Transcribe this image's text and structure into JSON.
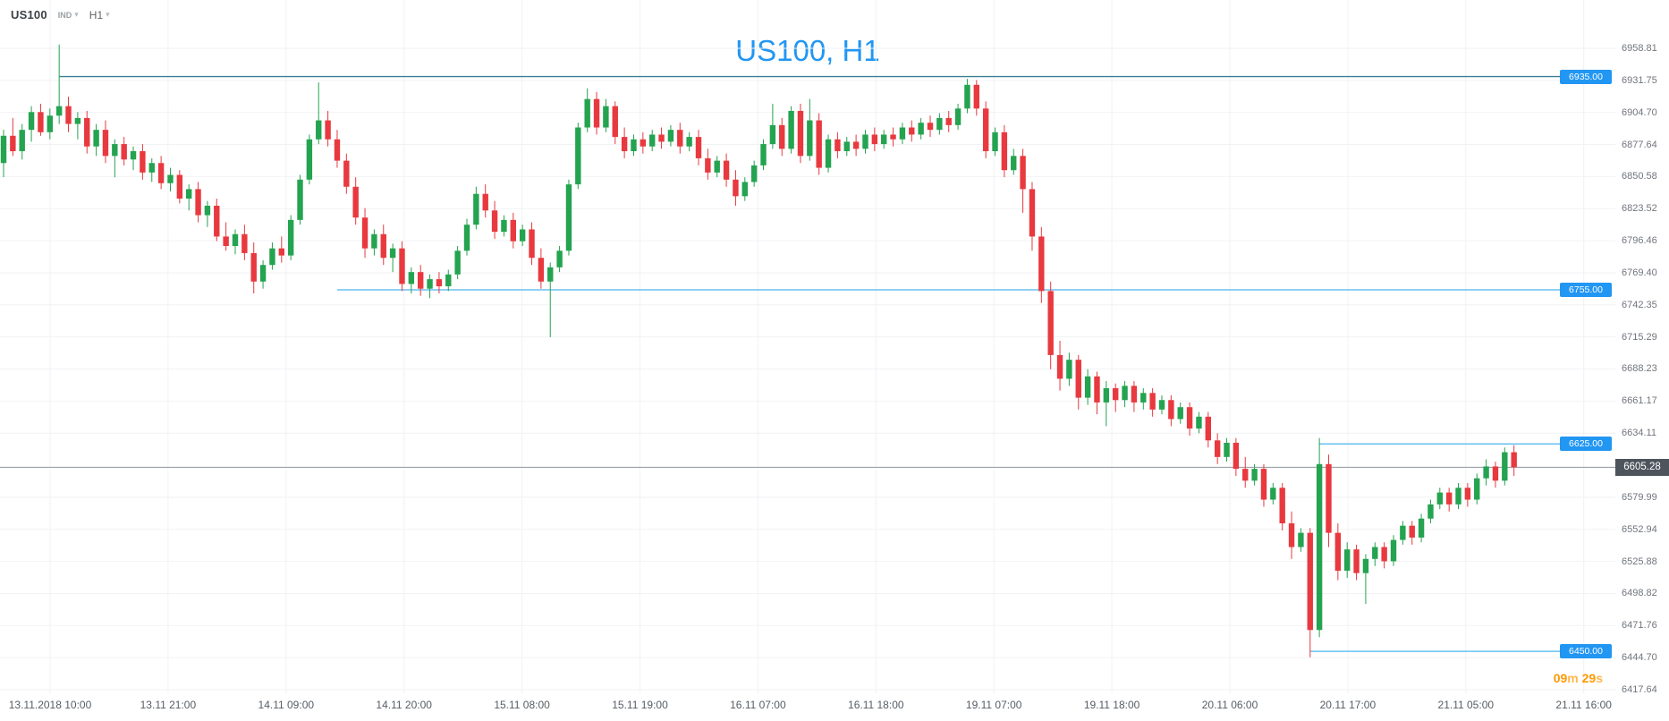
{
  "toolbar": {
    "symbol": "US100",
    "instrument_type": "IND",
    "timeframe": "H1"
  },
  "watermark": "US100, H1",
  "current_price": {
    "value": "6605.28",
    "price": 6605.28
  },
  "countdown": {
    "minutes": "09",
    "minutes_unit": "m",
    "seconds": "29",
    "seconds_unit": "s"
  },
  "colors": {
    "up": "#24a350",
    "down": "#e8393f",
    "accent_blue": "#2196f3",
    "line_blue": "#4ab5ef",
    "line_teal": "#3b7f92",
    "current_price_line": "#8f969d",
    "current_price_bg": "#4d545c",
    "watermark": "#2196f3",
    "countdown_digits": "#ff9800",
    "countdown_units": "#ffb74d",
    "grid": "#f0f2f5"
  },
  "price_axis": {
    "top_price": 6958.81,
    "bottom_price": 6417.64,
    "labels": [
      "6958.81",
      "6931.75",
      "6904.70",
      "6877.64",
      "6850.58",
      "6823.52",
      "6796.46",
      "6769.40",
      "6742.35",
      "6715.29",
      "6688.23",
      "6661.17",
      "6634.11",
      "6579.99",
      "6552.94",
      "6525.88",
      "6498.82",
      "6471.76",
      "6444.70",
      "6417.64"
    ]
  },
  "time_axis": {
    "labels": [
      "13.11.2018 10:00",
      "13.11 21:00",
      "14.11 09:00",
      "14.11 20:00",
      "15.11 08:00",
      "15.11 19:00",
      "16.11 07:00",
      "16.11 18:00",
      "19.11 07:00",
      "19.11 18:00",
      "20.11 06:00",
      "20.11 17:00",
      "21.11 05:00",
      "21.11 16:00"
    ]
  },
  "price_lines": [
    {
      "label": "6935.00",
      "price": 6935.0,
      "start_candle": 6,
      "style": "teal"
    },
    {
      "label": "6755.00",
      "price": 6755.0,
      "start_candle": 36,
      "style": "blue"
    },
    {
      "label": "6625.00",
      "price": 6625.0,
      "start_candle": 142,
      "style": "blue"
    },
    {
      "label": "6450.00",
      "price": 6450.0,
      "start_candle": 141,
      "style": "blue"
    }
  ],
  "chart_data": {
    "type": "candlestick",
    "title": "US100, H1",
    "symbol": "US100",
    "timeframe": "H1",
    "x_range": [
      "13.11.2018 10:00",
      "21.11.2018 16:00"
    ],
    "y_range": [
      6417.64,
      6958.81
    ],
    "horizontal_levels": [
      6935.0,
      6755.0,
      6625.0,
      6450.0
    ],
    "last_price": 6605.28,
    "ohlc_format": [
      "open",
      "high",
      "low",
      "close"
    ],
    "candles": [
      [
        6862,
        6890,
        6850,
        6885
      ],
      [
        6885,
        6900,
        6868,
        6872
      ],
      [
        6872,
        6895,
        6865,
        6890
      ],
      [
        6890,
        6910,
        6880,
        6905
      ],
      [
        6905,
        6912,
        6885,
        6888
      ],
      [
        6888,
        6908,
        6882,
        6902
      ],
      [
        6902,
        6962,
        6895,
        6910
      ],
      [
        6910,
        6918,
        6888,
        6895
      ],
      [
        6895,
        6905,
        6882,
        6900
      ],
      [
        6900,
        6906,
        6870,
        6876
      ],
      [
        6876,
        6895,
        6868,
        6890
      ],
      [
        6890,
        6898,
        6862,
        6868
      ],
      [
        6868,
        6882,
        6850,
        6878
      ],
      [
        6878,
        6884,
        6860,
        6865
      ],
      [
        6865,
        6876,
        6856,
        6872
      ],
      [
        6872,
        6878,
        6848,
        6854
      ],
      [
        6854,
        6866,
        6846,
        6862
      ],
      [
        6862,
        6868,
        6840,
        6845
      ],
      [
        6845,
        6858,
        6838,
        6852
      ],
      [
        6852,
        6856,
        6828,
        6832
      ],
      [
        6832,
        6844,
        6822,
        6840
      ],
      [
        6840,
        6846,
        6812,
        6818
      ],
      [
        6818,
        6830,
        6808,
        6826
      ],
      [
        6826,
        6832,
        6796,
        6800
      ],
      [
        6800,
        6812,
        6788,
        6792
      ],
      [
        6792,
        6806,
        6785,
        6802
      ],
      [
        6802,
        6810,
        6780,
        6786
      ],
      [
        6786,
        6795,
        6752,
        6762
      ],
      [
        6762,
        6780,
        6756,
        6776
      ],
      [
        6776,
        6795,
        6772,
        6790
      ],
      [
        6790,
        6800,
        6778,
        6784
      ],
      [
        6784,
        6818,
        6780,
        6814
      ],
      [
        6814,
        6852,
        6810,
        6848
      ],
      [
        6848,
        6886,
        6844,
        6882
      ],
      [
        6882,
        6930,
        6878,
        6898
      ],
      [
        6898,
        6906,
        6876,
        6882
      ],
      [
        6882,
        6890,
        6858,
        6864
      ],
      [
        6864,
        6870,
        6836,
        6842
      ],
      [
        6842,
        6850,
        6810,
        6816
      ],
      [
        6816,
        6824,
        6782,
        6790
      ],
      [
        6790,
        6806,
        6784,
        6802
      ],
      [
        6802,
        6810,
        6776,
        6782
      ],
      [
        6782,
        6794,
        6770,
        6790
      ],
      [
        6790,
        6796,
        6754,
        6760
      ],
      [
        6760,
        6774,
        6752,
        6770
      ],
      [
        6770,
        6776,
        6750,
        6756
      ],
      [
        6756,
        6768,
        6748,
        6764
      ],
      [
        6764,
        6770,
        6752,
        6758
      ],
      [
        6758,
        6772,
        6754,
        6768
      ],
      [
        6768,
        6792,
        6764,
        6788
      ],
      [
        6788,
        6815,
        6784,
        6810
      ],
      [
        6810,
        6842,
        6806,
        6836
      ],
      [
        6836,
        6844,
        6816,
        6822
      ],
      [
        6822,
        6830,
        6798,
        6804
      ],
      [
        6804,
        6818,
        6800,
        6814
      ],
      [
        6814,
        6820,
        6790,
        6796
      ],
      [
        6796,
        6810,
        6792,
        6806
      ],
      [
        6806,
        6812,
        6776,
        6782
      ],
      [
        6782,
        6790,
        6756,
        6762
      ],
      [
        6762,
        6778,
        6715,
        6774
      ],
      [
        6774,
        6792,
        6770,
        6788
      ],
      [
        6788,
        6848,
        6784,
        6844
      ],
      [
        6844,
        6896,
        6840,
        6892
      ],
      [
        6892,
        6925,
        6888,
        6916
      ],
      [
        6916,
        6922,
        6886,
        6892
      ],
      [
        6892,
        6916,
        6888,
        6910
      ],
      [
        6910,
        6914,
        6878,
        6884
      ],
      [
        6884,
        6892,
        6866,
        6872
      ],
      [
        6872,
        6886,
        6868,
        6882
      ],
      [
        6882,
        6888,
        6870,
        6876
      ],
      [
        6876,
        6890,
        6872,
        6886
      ],
      [
        6886,
        6892,
        6874,
        6880
      ],
      [
        6880,
        6894,
        6876,
        6890
      ],
      [
        6890,
        6896,
        6870,
        6876
      ],
      [
        6876,
        6888,
        6872,
        6884
      ],
      [
        6884,
        6890,
        6860,
        6866
      ],
      [
        6866,
        6874,
        6848,
        6854
      ],
      [
        6854,
        6868,
        6850,
        6864
      ],
      [
        6864,
        6870,
        6842,
        6848
      ],
      [
        6848,
        6856,
        6826,
        6834
      ],
      [
        6834,
        6850,
        6830,
        6846
      ],
      [
        6846,
        6864,
        6842,
        6860
      ],
      [
        6860,
        6882,
        6856,
        6878
      ],
      [
        6878,
        6912,
        6874,
        6894
      ],
      [
        6894,
        6900,
        6868,
        6874
      ],
      [
        6874,
        6910,
        6870,
        6906
      ],
      [
        6906,
        6912,
        6862,
        6868
      ],
      [
        6868,
        6916,
        6864,
        6898
      ],
      [
        6898,
        6904,
        6852,
        6858
      ],
      [
        6858,
        6886,
        6854,
        6882
      ],
      [
        6882,
        6888,
        6866,
        6872
      ],
      [
        6872,
        6884,
        6868,
        6880
      ],
      [
        6880,
        6886,
        6868,
        6874
      ],
      [
        6874,
        6890,
        6870,
        6886
      ],
      [
        6886,
        6892,
        6872,
        6878
      ],
      [
        6878,
        6890,
        6874,
        6886
      ],
      [
        6886,
        6892,
        6876,
        6882
      ],
      [
        6882,
        6896,
        6878,
        6892
      ],
      [
        6892,
        6898,
        6880,
        6886
      ],
      [
        6886,
        6900,
        6882,
        6896
      ],
      [
        6896,
        6902,
        6884,
        6890
      ],
      [
        6890,
        6904,
        6886,
        6900
      ],
      [
        6900,
        6906,
        6888,
        6894
      ],
      [
        6894,
        6912,
        6890,
        6908
      ],
      [
        6908,
        6933,
        6904,
        6928
      ],
      [
        6928,
        6932,
        6902,
        6908
      ],
      [
        6908,
        6914,
        6866,
        6872
      ],
      [
        6872,
        6892,
        6868,
        6888
      ],
      [
        6888,
        6894,
        6850,
        6856
      ],
      [
        6856,
        6874,
        6852,
        6868
      ],
      [
        6868,
        6874,
        6820,
        6840
      ],
      [
        6840,
        6846,
        6788,
        6800
      ],
      [
        6800,
        6808,
        6744,
        6754
      ],
      [
        6754,
        6762,
        6688,
        6700
      ],
      [
        6700,
        6712,
        6670,
        6680
      ],
      [
        6680,
        6702,
        6674,
        6696
      ],
      [
        6696,
        6700,
        6654,
        6664
      ],
      [
        6664,
        6688,
        6658,
        6682
      ],
      [
        6682,
        6686,
        6650,
        6660
      ],
      [
        6660,
        6678,
        6640,
        6672
      ],
      [
        6672,
        6676,
        6652,
        6662
      ],
      [
        6662,
        6678,
        6656,
        6674
      ],
      [
        6674,
        6678,
        6652,
        6660
      ],
      [
        6660,
        6672,
        6654,
        6668
      ],
      [
        6668,
        6672,
        6648,
        6654
      ],
      [
        6654,
        6666,
        6650,
        6662
      ],
      [
        6662,
        6666,
        6640,
        6646
      ],
      [
        6646,
        6660,
        6642,
        6656
      ],
      [
        6656,
        6660,
        6632,
        6638
      ],
      [
        6638,
        6652,
        6634,
        6648
      ],
      [
        6648,
        6652,
        6622,
        6628
      ],
      [
        6628,
        6634,
        6608,
        6614
      ],
      [
        6614,
        6630,
        6610,
        6626
      ],
      [
        6626,
        6630,
        6598,
        6604
      ],
      [
        6604,
        6614,
        6588,
        6594
      ],
      [
        6594,
        6608,
        6590,
        6604
      ],
      [
        6604,
        6608,
        6572,
        6578
      ],
      [
        6578,
        6592,
        6574,
        6588
      ],
      [
        6588,
        6592,
        6552,
        6558
      ],
      [
        6558,
        6568,
        6528,
        6538
      ],
      [
        6538,
        6554,
        6534,
        6550
      ],
      [
        6550,
        6554,
        6445,
        6468
      ],
      [
        6468,
        6630,
        6462,
        6608
      ],
      [
        6608,
        6616,
        6538,
        6550
      ],
      [
        6550,
        6558,
        6510,
        6518
      ],
      [
        6518,
        6542,
        6512,
        6536
      ],
      [
        6536,
        6540,
        6510,
        6516
      ],
      [
        6516,
        6532,
        6490,
        6528
      ],
      [
        6528,
        6542,
        6522,
        6538
      ],
      [
        6538,
        6542,
        6520,
        6526
      ],
      [
        6526,
        6548,
        6522,
        6544
      ],
      [
        6544,
        6560,
        6540,
        6556
      ],
      [
        6556,
        6560,
        6540,
        6546
      ],
      [
        6546,
        6566,
        6542,
        6562
      ],
      [
        6562,
        6578,
        6558,
        6574
      ],
      [
        6574,
        6588,
        6570,
        6584
      ],
      [
        6584,
        6588,
        6568,
        6574
      ],
      [
        6574,
        6592,
        6570,
        6588
      ],
      [
        6588,
        6592,
        6572,
        6578
      ],
      [
        6578,
        6600,
        6574,
        6596
      ],
      [
        6596,
        6612,
        6590,
        6606
      ],
      [
        6606,
        6610,
        6588,
        6594
      ],
      [
        6594,
        6622,
        6590,
        6618
      ],
      [
        6618,
        6624,
        6598,
        6605.28
      ]
    ]
  }
}
